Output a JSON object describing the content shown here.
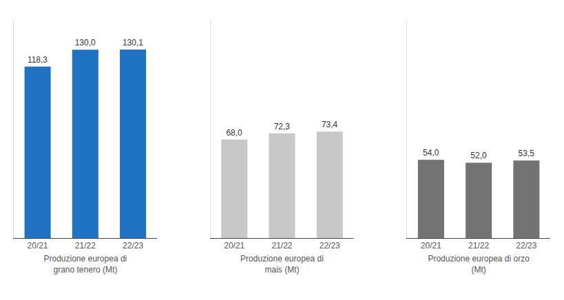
{
  "chart_data": [
    {
      "type": "bar",
      "categories": [
        "20/21",
        "21/22",
        "22/23"
      ],
      "values": [
        118.3,
        130.0,
        130.1
      ],
      "value_labels": [
        "118,3",
        "130,0",
        "130,1"
      ],
      "color": "#1f72c4",
      "xlabel": "Produzione europea di\ngrano tenero (Mt)",
      "ylim": [
        0,
        150
      ],
      "grid": false,
      "data_labels": true,
      "tick_labels": "x"
    },
    {
      "type": "bar",
      "categories": [
        "20/21",
        "21/22",
        "22/23"
      ],
      "values": [
        68.0,
        72.3,
        73.4
      ],
      "value_labels": [
        "68,0",
        "72,3",
        "73,4"
      ],
      "color": "#c8c8c8",
      "xlabel": "Produzione europea di\nmais (Mt)",
      "ylim": [
        0,
        150
      ],
      "grid": false,
      "data_labels": true,
      "tick_labels": "x"
    },
    {
      "type": "bar",
      "categories": [
        "20/21",
        "21/22",
        "22/23"
      ],
      "values": [
        54.0,
        52.0,
        53.5
      ],
      "value_labels": [
        "54,0",
        "52,0",
        "53,5"
      ],
      "color": "#737373",
      "xlabel": "Produzione europea di orzo\n(Mt)",
      "ylim": [
        0,
        150
      ],
      "grid": false,
      "data_labels": true,
      "tick_labels": "x"
    }
  ]
}
